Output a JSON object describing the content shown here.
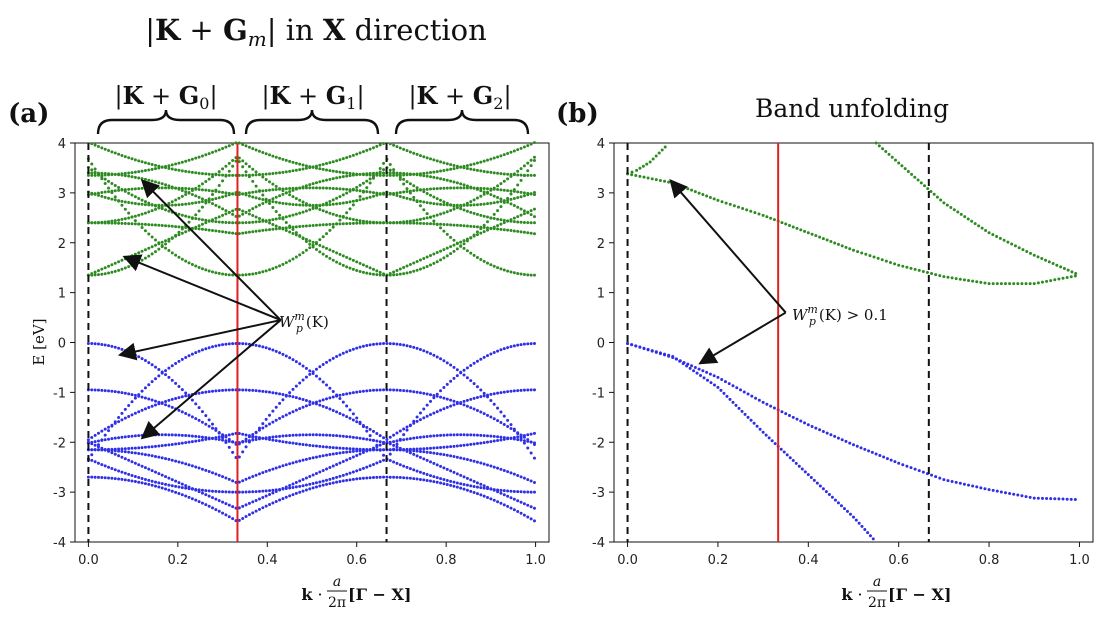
{
  "figure": {
    "header": {
      "title_open": "|",
      "title_K": "K",
      "title_plus": " + ",
      "title_G": "G",
      "title_sub": "m",
      "title_close": "|",
      "title_in": " in ",
      "title_X": "X",
      "title_dir": " direction"
    },
    "brace_labels": [
      {
        "G": "G",
        "sub": "0"
      },
      {
        "G": "G",
        "sub": "1"
      },
      {
        "G": "G",
        "sub": "2"
      }
    ],
    "panel_a": {
      "label": "(a)"
    },
    "panel_b": {
      "label": "(b)",
      "title": "Band unfolding"
    },
    "annotation_a": {
      "W": "W",
      "sup": "m",
      "sub": "p",
      "arg": "(K)"
    },
    "annotation_b": {
      "W": "W",
      "sup": "m",
      "sub": "p",
      "arg": "(K)",
      "tail": "  >  0.1"
    },
    "xlabel": {
      "k": "k",
      "dot": " · ",
      "num": "a",
      "den": "2π",
      "bracket": " [Γ − X]"
    },
    "ylabel": "E [eV]",
    "colors": {
      "conduction": "#2e8b22",
      "valence": "#2f2fe6",
      "vline_red": "#e02020",
      "vline_dash": "#111111",
      "arrow": "#111111"
    }
  },
  "chart_data": [
    {
      "type": "scatter",
      "panel": "a",
      "xlim": [
        -0.03,
        1.03
      ],
      "ylim": [
        -4,
        4
      ],
      "xticks": [
        "0.0",
        "0.2",
        "0.4",
        "0.6",
        "0.8",
        "1.0"
      ],
      "yticks": [
        "-4",
        "-3",
        "-2",
        "-1",
        "0",
        "1",
        "2",
        "3",
        "4"
      ],
      "vlines_dashed": [
        0.0,
        0.6667
      ],
      "vlines_red": [
        0.3333
      ],
      "band_groups": {
        "conduction": {
          "minima": [
            1.35,
            2.4,
            2.4,
            3.35,
            3.4
          ],
          "note": "folded free-electron-like bands, green"
        },
        "valence": {
          "maxima": [
            0.0,
            -0.95,
            -0.95,
            -2.15,
            -2.7
          ],
          "note": "folded bands, blue"
        }
      },
      "annotation_target_points": [
        [
          0.12,
          3.25
        ],
        [
          0.08,
          1.72
        ],
        [
          0.07,
          -0.25
        ],
        [
          0.12,
          -1.92
        ]
      ],
      "annotation_anchor": [
        0.43,
        0.45
      ]
    },
    {
      "type": "scatter",
      "panel": "b",
      "xlim": [
        -0.03,
        1.03
      ],
      "ylim": [
        -4,
        4
      ],
      "xticks": [
        "0.0",
        "0.2",
        "0.4",
        "0.6",
        "0.8",
        "1.0"
      ],
      "yticks": [
        "-4",
        "-3",
        "-2",
        "-1",
        "0",
        "1",
        "2",
        "3",
        "4"
      ],
      "vlines_dashed": [
        0.0,
        0.6667
      ],
      "vlines_red": [
        0.3333
      ],
      "bands": [
        {
          "name": "",
          "color": "conduction",
          "points": [
            [
              0.0,
              3.38
            ],
            [
              0.1,
              3.2
            ],
            [
              0.2,
              2.85
            ],
            [
              0.3,
              2.55
            ],
            [
              0.4,
              2.2
            ],
            [
              0.5,
              1.85
            ],
            [
              0.6,
              1.55
            ],
            [
              0.7,
              1.32
            ],
            [
              0.8,
              1.18
            ],
            [
              0.9,
              1.18
            ],
            [
              1.0,
              1.35
            ]
          ]
        },
        {
          "name": "",
          "color": "conduction",
          "points": [
            [
              0.0,
              3.38
            ],
            [
              0.02,
              3.45
            ],
            [
              0.05,
              3.62
            ],
            [
              0.09,
              3.98
            ]
          ]
        },
        {
          "name": "",
          "color": "conduction",
          "points": [
            [
              0.55,
              4.0
            ],
            [
              0.6,
              3.6
            ],
            [
              0.65,
              3.2
            ],
            [
              0.7,
              2.8
            ],
            [
              0.8,
              2.2
            ],
            [
              0.9,
              1.75
            ],
            [
              1.0,
              1.35
            ]
          ]
        },
        {
          "name": "",
          "color": "valence",
          "points": [
            [
              0.0,
              -0.02
            ],
            [
              0.1,
              -0.3
            ],
            [
              0.2,
              -0.7
            ],
            [
              0.3,
              -1.2
            ],
            [
              0.4,
              -1.65
            ],
            [
              0.5,
              -2.05
            ],
            [
              0.6,
              -2.42
            ],
            [
              0.7,
              -2.75
            ],
            [
              0.8,
              -2.95
            ],
            [
              0.9,
              -3.12
            ],
            [
              1.0,
              -3.15
            ]
          ]
        },
        {
          "name": "",
          "color": "valence",
          "points": [
            [
              0.0,
              -0.02
            ],
            [
              0.1,
              -0.28
            ],
            [
              0.2,
              -0.9
            ],
            [
              0.3,
              -1.8
            ],
            [
              0.4,
              -2.65
            ],
            [
              0.5,
              -3.5
            ],
            [
              0.55,
              -4.0
            ]
          ]
        }
      ],
      "annotation_target_points": [
        [
          0.095,
          3.25
        ],
        [
          0.16,
          -0.42
        ]
      ],
      "annotation_anchor": [
        0.35,
        0.6
      ]
    }
  ]
}
